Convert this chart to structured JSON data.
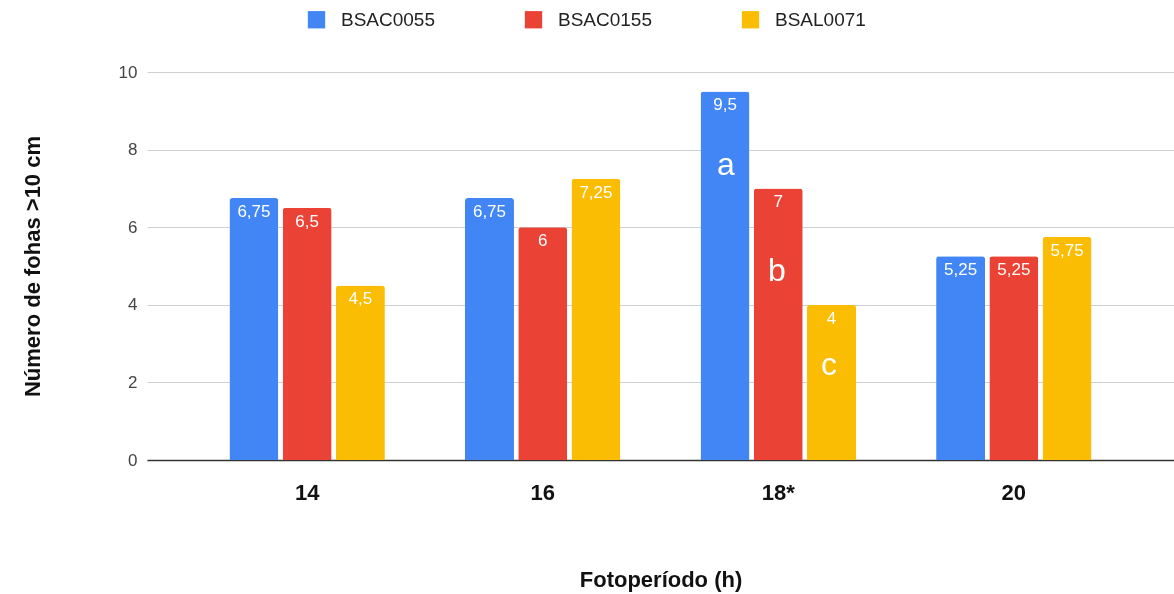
{
  "chart_data": {
    "type": "bar",
    "xlabel": "Fotoperíodo (h)",
    "ylabel": "Número de fohas >10 cm",
    "categories": [
      "14",
      "16",
      "18*",
      "20"
    ],
    "series": [
      {
        "name": "BSAC0055",
        "color": "#4285f4",
        "values": [
          6.75,
          6.75,
          9.5,
          5.25
        ],
        "value_labels": [
          "6,75",
          "6,75",
          "9,5",
          "5,25"
        ]
      },
      {
        "name": "BSAC0155",
        "color": "#ea4335",
        "values": [
          6.5,
          6,
          7,
          5.25
        ],
        "value_labels": [
          "6,5",
          "6",
          "7",
          "5,25"
        ]
      },
      {
        "name": "BSAL0071",
        "color": "#fbbc04",
        "values": [
          4.5,
          7.25,
          4,
          5.75
        ],
        "value_labels": [
          "4,5",
          "7,25",
          "4",
          "5,75"
        ]
      }
    ],
    "ylim": [
      0,
      10
    ],
    "yticks": [
      0,
      2,
      4,
      6,
      8,
      10
    ],
    "grid": "y",
    "legend": "top",
    "annotations": [
      "a",
      "b",
      "c"
    ]
  }
}
